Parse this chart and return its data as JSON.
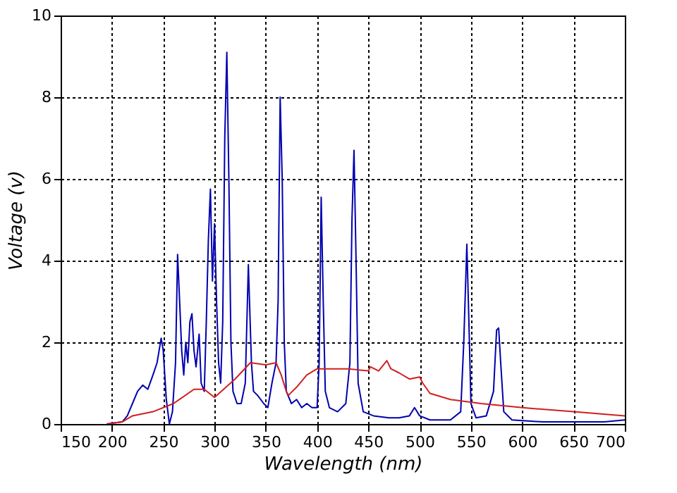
{
  "chart_data": {
    "type": "line",
    "xlabel": "Wavelength (nm)",
    "ylabel": "Voltage (v)",
    "xlim": [
      150,
      700
    ],
    "ylim": [
      0,
      10
    ],
    "xticks": [
      150,
      200,
      250,
      300,
      350,
      400,
      450,
      500,
      550,
      600,
      650,
      700
    ],
    "yticks": [
      0,
      2,
      4,
      6,
      8,
      10
    ],
    "grid": true,
    "legend": false,
    "marker": "none",
    "line_style": "solid",
    "series": [
      {
        "color": "#0000b0",
        "x": [
          195,
          210,
          215,
          220,
          225,
          230,
          235,
          240,
          244,
          248,
          250,
          253,
          256,
          259,
          262,
          264,
          266,
          268,
          270,
          272,
          274,
          276,
          278,
          280,
          282,
          285,
          287,
          290,
          292,
          294,
          296,
          298,
          300,
          302,
          304,
          306,
          308,
          310,
          312,
          314,
          316,
          318,
          322,
          326,
          330,
          333,
          336,
          338,
          342,
          348,
          352,
          356,
          360,
          362,
          364,
          366,
          368,
          370,
          375,
          380,
          385,
          390,
          395,
          400,
          402,
          404,
          406,
          408,
          412,
          420,
          428,
          432,
          434,
          436,
          438,
          440,
          445,
          455,
          470,
          480,
          490,
          495,
          500,
          510,
          530,
          540,
          543,
          546,
          548,
          550,
          555,
          565,
          572,
          575,
          577,
          579,
          582,
          590,
          620,
          680,
          700
        ],
        "values": [
          0,
          0.05,
          0.2,
          0.5,
          0.8,
          0.95,
          0.85,
          1.2,
          1.5,
          2.1,
          1.8,
          0.6,
          0,
          0.3,
          1.5,
          4.15,
          3.0,
          1.8,
          1.2,
          2.0,
          1.5,
          2.5,
          2.7,
          1.8,
          1.4,
          2.2,
          1.0,
          0.8,
          2.5,
          4.5,
          5.75,
          3.5,
          4.9,
          3.0,
          1.5,
          1.0,
          2.5,
          7.0,
          9.1,
          6.0,
          2.0,
          0.8,
          0.5,
          0.5,
          1.0,
          3.9,
          1.5,
          0.8,
          0.7,
          0.5,
          0.4,
          1.0,
          1.5,
          3.0,
          8.0,
          6.0,
          2.0,
          0.8,
          0.5,
          0.6,
          0.4,
          0.5,
          0.4,
          0.4,
          1.5,
          5.55,
          3.0,
          0.8,
          0.4,
          0.3,
          0.5,
          1.5,
          5.0,
          6.7,
          4.0,
          1.0,
          0.3,
          0.2,
          0.15,
          0.15,
          0.2,
          0.4,
          0.2,
          0.1,
          0.1,
          0.3,
          2.0,
          4.4,
          2.5,
          0.5,
          0.15,
          0.2,
          0.8,
          2.3,
          2.35,
          1.5,
          0.3,
          0.1,
          0.05,
          0.05,
          0.1
        ]
      },
      {
        "color": "#d02020",
        "x": [
          195,
          210,
          220,
          240,
          260,
          280,
          290,
          300,
          320,
          335,
          350,
          360,
          365,
          370,
          372,
          380,
          390,
          400,
          430,
          450,
          452,
          460,
          468,
          472,
          480,
          490,
          500,
          503,
          510,
          530,
          560,
          600,
          650,
          700
        ],
        "values": [
          0,
          0.05,
          0.2,
          0.3,
          0.5,
          0.85,
          0.85,
          0.65,
          1.1,
          1.5,
          1.45,
          1.5,
          1.2,
          0.8,
          0.7,
          0.9,
          1.2,
          1.35,
          1.35,
          1.3,
          1.4,
          1.3,
          1.55,
          1.35,
          1.25,
          1.1,
          1.15,
          1.0,
          0.75,
          0.6,
          0.5,
          0.4,
          0.3,
          0.2
        ]
      }
    ]
  }
}
